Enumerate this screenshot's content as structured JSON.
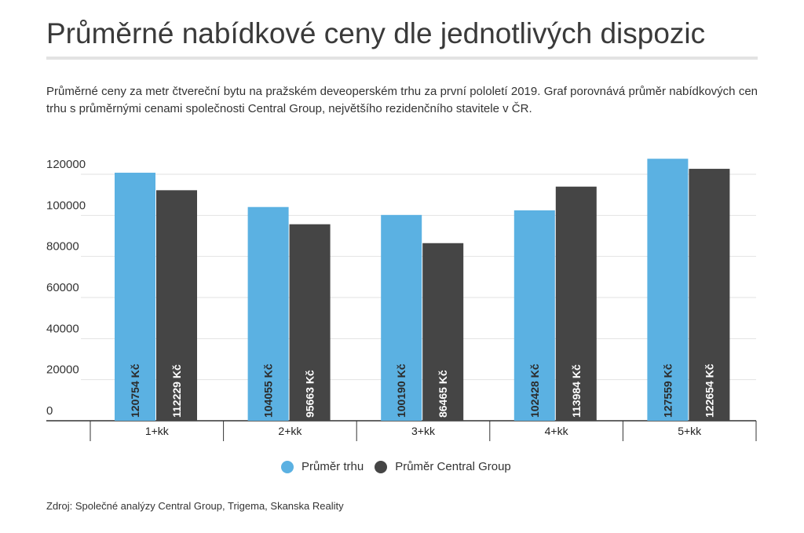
{
  "header": {
    "title": "Průměrné nabídkové ceny dle jednotlivých dispozic",
    "subtitle": "Průměrné ceny za metr čtvereční bytu na pražském deveoperském trhu za první pololetí 2019. Graf porovnává průměr nabídkových cen trhu s průměrnými cenami společnosti Central Group, největšího rezidenčního stavitele v ČR."
  },
  "source": "Zdroj: Společné analýzy Central Group, Trigema, Skanska Reality",
  "chart_data": {
    "type": "bar",
    "title": "Průměrné nabídkové ceny dle jednotlivých dispozic",
    "categories": [
      "1+kk",
      "2+kk",
      "3+kk",
      "4+kk",
      "5+kk"
    ],
    "series": [
      {
        "name": "Průměr trhu",
        "color": "#5bb1e2",
        "values": [
          120754,
          104055,
          100190,
          102428,
          127559
        ],
        "labels": [
          "120754 Kč",
          "104055 Kč",
          "100190 Kč",
          "102428 Kč",
          "127559 Kč"
        ]
      },
      {
        "name": "Průměr Central Group",
        "color": "#454545",
        "values": [
          112229,
          95663,
          86465,
          113984,
          122654
        ],
        "labels": [
          "112229 Kč",
          "95663 Kč",
          "86465 Kč",
          "113984 Kč",
          "122654 Kč"
        ]
      }
    ],
    "yticks": [
      0,
      20000,
      40000,
      60000,
      80000,
      100000,
      120000
    ],
    "ylim": [
      0,
      120000
    ],
    "grid": true,
    "legend_position": "bottom"
  }
}
